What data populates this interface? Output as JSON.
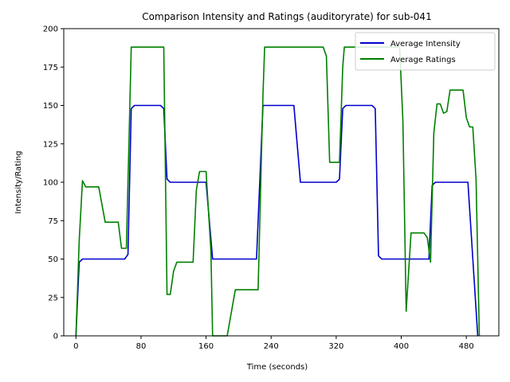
{
  "chart_data": {
    "type": "line",
    "title": "Comparison Intensity and Ratings (auditoryrate) for sub-041",
    "xlabel": "Time (seconds)",
    "ylabel": "Intensity/Rating",
    "xlim": [
      -15,
      520
    ],
    "ylim": [
      0,
      200
    ],
    "xticks": [
      0,
      80,
      160,
      240,
      320,
      400,
      480
    ],
    "yticks": [
      0,
      25,
      50,
      75,
      100,
      125,
      150,
      175,
      200
    ],
    "grid": false,
    "legend_position": "top-right",
    "series": [
      {
        "name": "Average Intensity",
        "color": "#0000cc",
        "points": [
          [
            0,
            0
          ],
          [
            4,
            48
          ],
          [
            8,
            50
          ],
          [
            30,
            50
          ],
          [
            60,
            50
          ],
          [
            64,
            53
          ],
          [
            68,
            148
          ],
          [
            72,
            150
          ],
          [
            104,
            150
          ],
          [
            108,
            148
          ],
          [
            112,
            102
          ],
          [
            116,
            100
          ],
          [
            160,
            100
          ],
          [
            168,
            50
          ],
          [
            222,
            50
          ],
          [
            230,
            150
          ],
          [
            268,
            150
          ],
          [
            276,
            100
          ],
          [
            320,
            100
          ],
          [
            324,
            102
          ],
          [
            328,
            148
          ],
          [
            332,
            150
          ],
          [
            364,
            150
          ],
          [
            368,
            148
          ],
          [
            372,
            52
          ],
          [
            376,
            50
          ],
          [
            428,
            50
          ],
          [
            434,
            50
          ],
          [
            438,
            98
          ],
          [
            442,
            100
          ],
          [
            482,
            100
          ],
          [
            494,
            0
          ]
        ]
      },
      {
        "name": "Average Ratings",
        "color": "#008000",
        "points": [
          [
            0,
            0
          ],
          [
            4,
            62
          ],
          [
            8,
            101
          ],
          [
            12,
            97
          ],
          [
            28,
            97
          ],
          [
            36,
            74
          ],
          [
            52,
            74
          ],
          [
            56,
            57
          ],
          [
            62,
            57
          ],
          [
            68,
            188
          ],
          [
            108,
            188
          ],
          [
            112,
            27
          ],
          [
            116,
            27
          ],
          [
            120,
            42
          ],
          [
            124,
            48
          ],
          [
            144,
            48
          ],
          [
            148,
            95
          ],
          [
            152,
            107
          ],
          [
            160,
            107
          ],
          [
            166,
            55
          ],
          [
            168,
            0
          ],
          [
            186,
            0
          ],
          [
            196,
            30
          ],
          [
            224,
            30
          ],
          [
            230,
            157
          ],
          [
            232,
            188
          ],
          [
            304,
            188
          ],
          [
            308,
            182
          ],
          [
            312,
            113
          ],
          [
            324,
            113
          ],
          [
            328,
            175
          ],
          [
            330,
            188
          ],
          [
            398,
            188
          ],
          [
            402,
            140
          ],
          [
            406,
            16
          ],
          [
            412,
            67
          ],
          [
            428,
            67
          ],
          [
            432,
            64
          ],
          [
            436,
            48
          ],
          [
            440,
            132
          ],
          [
            444,
            151
          ],
          [
            448,
            151
          ],
          [
            452,
            145
          ],
          [
            456,
            146
          ],
          [
            460,
            160
          ],
          [
            476,
            160
          ],
          [
            480,
            142
          ],
          [
            484,
            136
          ],
          [
            488,
            136
          ],
          [
            492,
            102
          ],
          [
            496,
            0
          ]
        ]
      }
    ]
  }
}
